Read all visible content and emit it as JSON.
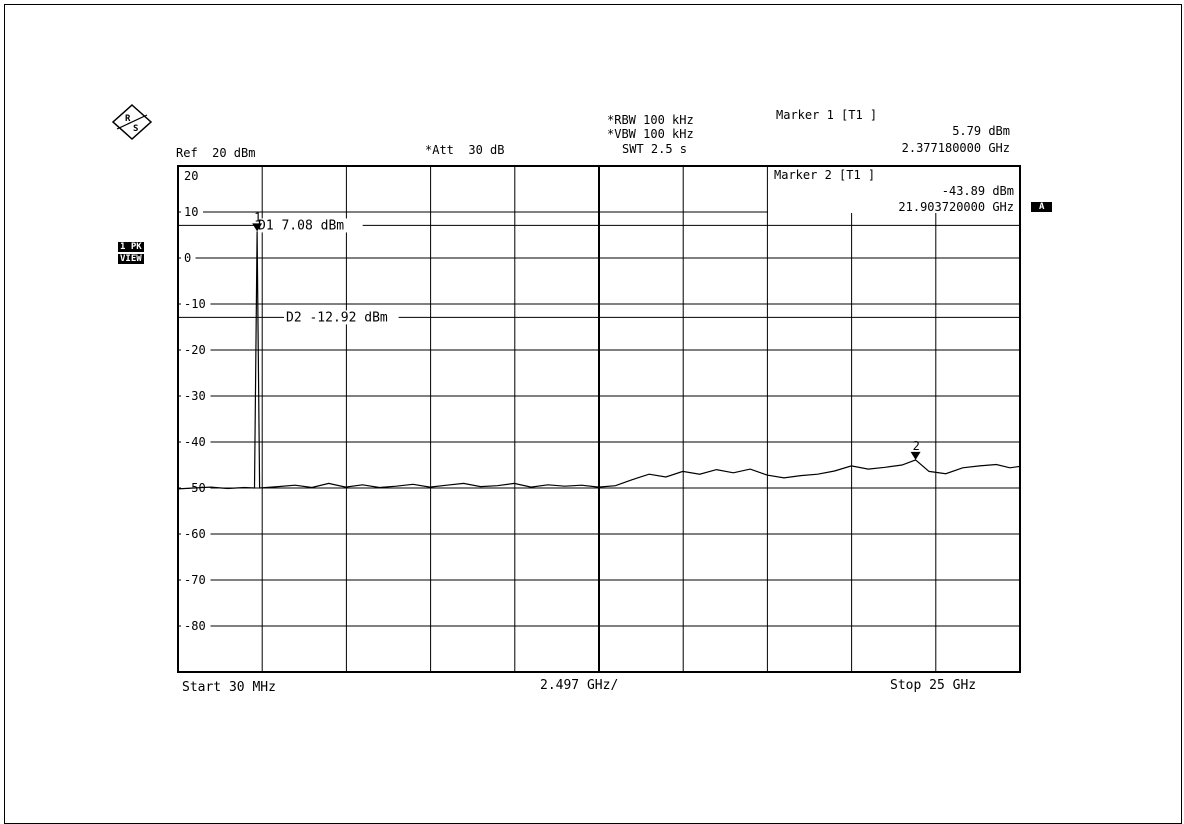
{
  "header": {
    "rbw": "*RBW 100 kHz",
    "vbw": "*VBW 100 kHz",
    "swt": "SWT 2.5 s",
    "ref": "Ref  20 dBm",
    "att": "*Att  30 dB",
    "marker1_title": "Marker 1 [T1 ]",
    "marker1_level": "5.79 dBm",
    "marker1_freq": "2.377180000 GHz"
  },
  "side_tags": {
    "trace": "1 PK",
    "view": "VIEW",
    "a": "A"
  },
  "chart_data": {
    "type": "line",
    "y_unit": "dBm",
    "ylim": [
      -90,
      20
    ],
    "y_ticks": [
      "20",
      "10",
      "0",
      "-10",
      "-20",
      "-30",
      "-40",
      "-50",
      "-60",
      "-70",
      "-80"
    ],
    "xlim_ghz": [
      0.03,
      25
    ],
    "x_start_label": "Start 30 MHz",
    "x_div_label": "2.497 GHz/",
    "x_stop_label": "Stop 25 GHz",
    "grid": true,
    "display_lines": [
      {
        "label": "D1  7.08  dBm",
        "value": 7.08
      },
      {
        "label": "D2  -12.92 dBm",
        "value": -12.92
      }
    ],
    "markers": [
      {
        "id": "1",
        "x": 2.37718,
        "y": 5.79,
        "title": "Marker 1 [T1 ]",
        "level": "5.79 dBm",
        "freq": "2.377180000 GHz"
      },
      {
        "id": "2",
        "x": 21.90372,
        "y": -43.89,
        "title": "Marker 2 [T1 ]",
        "level": "-43.89 dBm",
        "freq": "21.903720000 GHz"
      }
    ],
    "series": [
      {
        "points": [
          [
            0.03,
            -50.2
          ],
          [
            0.5,
            -50.0
          ],
          [
            1.0,
            -49.8
          ],
          [
            1.5,
            -50.1
          ],
          [
            2.0,
            -49.9
          ],
          [
            2.3,
            -50.0
          ],
          [
            2.377,
            5.79
          ],
          [
            2.45,
            -50.0
          ],
          [
            3.0,
            -49.7
          ],
          [
            3.5,
            -49.4
          ],
          [
            4.0,
            -49.9
          ],
          [
            4.5,
            -49.0
          ],
          [
            5.0,
            -49.8
          ],
          [
            5.5,
            -49.3
          ],
          [
            6.0,
            -49.9
          ],
          [
            6.5,
            -49.6
          ],
          [
            7.0,
            -49.2
          ],
          [
            7.5,
            -49.8
          ],
          [
            8.0,
            -49.4
          ],
          [
            8.5,
            -49.0
          ],
          [
            9.0,
            -49.7
          ],
          [
            9.5,
            -49.5
          ],
          [
            10.0,
            -49.0
          ],
          [
            10.5,
            -49.8
          ],
          [
            11.0,
            -49.3
          ],
          [
            11.5,
            -49.6
          ],
          [
            12.0,
            -49.4
          ],
          [
            12.5,
            -49.8
          ],
          [
            13.0,
            -49.5
          ],
          [
            13.5,
            -48.2
          ],
          [
            14.0,
            -47.0
          ],
          [
            14.5,
            -47.6
          ],
          [
            15.0,
            -46.4
          ],
          [
            15.5,
            -47.0
          ],
          [
            16.0,
            -46.0
          ],
          [
            16.5,
            -46.7
          ],
          [
            17.0,
            -45.9
          ],
          [
            17.5,
            -47.2
          ],
          [
            18.0,
            -47.8
          ],
          [
            18.5,
            -47.3
          ],
          [
            19.0,
            -47.0
          ],
          [
            19.5,
            -46.3
          ],
          [
            20.0,
            -45.2
          ],
          [
            20.5,
            -45.9
          ],
          [
            21.0,
            -45.5
          ],
          [
            21.5,
            -45.0
          ],
          [
            21.904,
            -43.89
          ],
          [
            22.3,
            -46.4
          ],
          [
            22.8,
            -46.9
          ],
          [
            23.3,
            -45.6
          ],
          [
            23.8,
            -45.2
          ],
          [
            24.3,
            -44.9
          ],
          [
            24.7,
            -45.6
          ],
          [
            25.0,
            -45.3
          ]
        ]
      }
    ]
  }
}
